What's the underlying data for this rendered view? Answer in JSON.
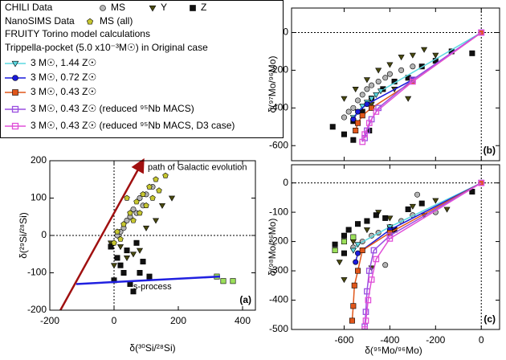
{
  "legend_headings": [
    "CHILI Data",
    "NanoSIMS Data",
    "FRUITY Torino model calculations",
    "Trippella-pocket (5.0 x10⁻³M☉) in Original case"
  ],
  "chart_data": [
    {
      "type": "scatter",
      "panel_label": "(a)",
      "xlabel": "δ(³⁰Si/²⁸Si)",
      "ylabel": "δ(²⁹Si/²⁸Si)",
      "xlim": [
        -200,
        440
      ],
      "ylim": [
        -200,
        200
      ],
      "xticks": [
        -200,
        0,
        200,
        400
      ],
      "yticks": [
        -200,
        -100,
        0,
        100,
        200
      ],
      "series": [
        {
          "name": "MS",
          "color": "#b4b4b4",
          "marker": "circle",
          "x": [
            20,
            40,
            60,
            80,
            100,
            30,
            50,
            70,
            120,
            10,
            90
          ],
          "values": [
            10,
            40,
            70,
            100,
            110,
            20,
            50,
            60,
            130,
            0,
            80
          ]
        },
        {
          "name": "Y",
          "color": "#4a4a10",
          "marker": "triangle-down",
          "x": [
            -10,
            20,
            60,
            100,
            150,
            180,
            40,
            80,
            130,
            0
          ],
          "values": [
            -20,
            -30,
            -50,
            20,
            80,
            100,
            -60,
            -40,
            40,
            -80
          ]
        },
        {
          "name": "Z",
          "color": "#111111",
          "marker": "square",
          "x": [
            -10,
            10,
            30,
            50,
            60,
            80,
            20,
            0,
            90,
            40,
            110,
            70
          ],
          "values": [
            -30,
            -60,
            -100,
            -130,
            -150,
            -100,
            -80,
            -120,
            -70,
            -40,
            -110,
            -20
          ]
        },
        {
          "name": "MS (all)",
          "color": "#c6c630",
          "marker": "pentagon",
          "x": [
            160,
            130,
            110,
            90,
            70,
            50,
            30,
            10,
            20,
            100,
            140,
            60,
            80,
            0,
            40,
            120
          ],
          "values": [
            160,
            150,
            130,
            110,
            90,
            60,
            30,
            10,
            -10,
            80,
            120,
            40,
            60,
            -20,
            100,
            100
          ]
        },
        {
          "color": "#9be05a",
          "marker": "square",
          "x": [
            320,
            340,
            370
          ],
          "values": [
            -110,
            -122,
            -122
          ]
        }
      ],
      "lines": [
        {
          "color": "#a01010",
          "arrow": true,
          "x": [
            -167,
            90
          ],
          "values": [
            -200,
            200
          ]
        },
        {
          "color": "#2020e0",
          "x": [
            -118,
            330
          ],
          "values": [
            -130,
            -110
          ]
        }
      ],
      "annotations": [
        {
          "text": "path of Galactic evolution",
          "x": 105,
          "y": 182
        },
        {
          "text": "s-process",
          "x": 60,
          "y": -138
        }
      ]
    },
    {
      "type": "scatter",
      "panel_label": "(b)",
      "ylabel": "δ(⁹⁷Mo/⁹⁶Mo)",
      "xlim": [
        -830,
        80
      ],
      "ylim": [
        -680,
        130
      ],
      "xticks": [
        -600,
        -400,
        -200,
        0
      ],
      "yticks": [
        -600,
        -400,
        -200,
        0
      ],
      "series": [
        {
          "color": "#b4b4b4",
          "marker": "circle",
          "x": [
            -560,
            -540,
            -520,
            -500,
            -480,
            -450,
            -420,
            -400,
            -350,
            -300,
            -600,
            -580
          ],
          "values": [
            -400,
            -360,
            -330,
            -300,
            -280,
            -260,
            -240,
            -220,
            -200,
            -180,
            -450,
            -420
          ]
        },
        {
          "color": "#4a4a10",
          "marker": "triangle-down",
          "x": [
            -500,
            -450,
            -400,
            -350,
            -300,
            -250,
            -200,
            -550,
            -600,
            -480,
            -380,
            -320
          ],
          "values": [
            -250,
            -200,
            -170,
            -130,
            -120,
            -90,
            -120,
            -300,
            -350,
            -380,
            -300,
            -350
          ]
        },
        {
          "color": "#111111",
          "marker": "square",
          "x": [
            -650,
            -600,
            -560,
            -520,
            -480,
            -430,
            -380,
            -320,
            -260,
            -200,
            -130,
            -40,
            -560,
            -490
          ],
          "values": [
            -500,
            -540,
            -470,
            -420,
            -350,
            -300,
            -260,
            -240,
            -180,
            -150,
            -100,
            -110,
            -570,
            -520
          ]
        },
        {
          "name": "3 M☉, 1.44 Z☉",
          "color": "#5bd8e0",
          "marker": "triangle-down",
          "line": true,
          "x": [
            0,
            -440,
            -460,
            -480,
            -500,
            -520,
            -540,
            -560
          ],
          "values": [
            0,
            -310,
            -330,
            -350,
            -370,
            -390,
            -420,
            -450
          ]
        },
        {
          "name": "3 M☉, 0.72 Z☉",
          "color": "#1a1adb",
          "marker": "circle",
          "line": true,
          "x": [
            0,
            -300,
            -500,
            -540,
            -560
          ],
          "values": [
            0,
            -250,
            -380,
            -420,
            -460
          ]
        },
        {
          "name": "3 M☉, 0.43 Z☉",
          "color": "#e0561a",
          "marker": "square",
          "line": true,
          "x": [
            0,
            -300,
            -480,
            -520,
            -540,
            -550
          ],
          "values": [
            0,
            -260,
            -400,
            -440,
            -480,
            -520
          ]
        },
        {
          "name": "3 M☉, 0.43 Z☉ (reduced ⁹⁵Nb MACS)",
          "color": "#9a4fe0",
          "marker": "square-open",
          "line": true,
          "x": [
            0,
            -300,
            -450,
            -480,
            -500,
            -510
          ],
          "values": [
            0,
            -250,
            -400,
            -460,
            -520,
            -560
          ]
        },
        {
          "name": "3 M☉, 0.43 Z☉ (reduced ⁹⁵Nb MACS, D3 case)",
          "color": "#e050d8",
          "marker": "square-open",
          "line": true,
          "x": [
            0,
            -300,
            -460,
            -490,
            -510,
            -520
          ],
          "values": [
            0,
            -260,
            -420,
            -480,
            -540,
            -580
          ]
        }
      ]
    },
    {
      "type": "scatter",
      "panel_label": "(c)",
      "xlabel": "δ(⁹⁵Mo/⁹⁶Mo)",
      "ylabel": "δ(⁹⁸Mo/⁹⁶Mo)",
      "xlim": [
        -830,
        80
      ],
      "ylim": [
        -500,
        62
      ],
      "xticks": [
        -600,
        -400,
        -200,
        0
      ],
      "yticks": [
        -500,
        -400,
        -300,
        -200,
        -100,
        0
      ],
      "series": [
        {
          "color": "#b4b4b4",
          "marker": "circle",
          "x": [
            -560,
            -520,
            -480,
            -450,
            -400,
            -350,
            -300,
            -280,
            -420,
            -600,
            -200
          ],
          "values": [
            -220,
            -200,
            -180,
            -170,
            -150,
            -130,
            -110,
            -40,
            -280,
            -180,
            -100
          ]
        },
        {
          "color": "#4a4a10",
          "marker": "triangle-down",
          "x": [
            -620,
            -560,
            -500,
            -450,
            -400,
            -300,
            -250,
            -200,
            -150,
            -600,
            -480
          ],
          "values": [
            -270,
            -200,
            -160,
            -100,
            -120,
            -80,
            -110,
            -60,
            -90,
            -330,
            -290
          ]
        },
        {
          "color": "#111111",
          "marker": "square",
          "x": [
            -640,
            -600,
            -580,
            -540,
            -500,
            -460,
            -420,
            -380,
            -320,
            -260,
            -40,
            -600
          ],
          "values": [
            -210,
            -180,
            -160,
            -140,
            -130,
            -110,
            -120,
            -160,
            -90,
            -70,
            -30,
            -240
          ]
        },
        {
          "color": "#9be05a",
          "marker": "square",
          "x": [
            -640,
            -600,
            -560
          ],
          "values": [
            -230,
            -200,
            -185
          ]
        },
        {
          "color": "#5bd8e0",
          "marker": "triangle-down",
          "line": true,
          "x": [
            0,
            -400,
            -540,
            -560
          ],
          "values": [
            0,
            -150,
            -210,
            -230
          ]
        },
        {
          "color": "#1a1adb",
          "marker": "circle",
          "line": true,
          "x": [
            0,
            -400,
            -540,
            -550
          ],
          "values": [
            0,
            -160,
            -240,
            -270
          ]
        },
        {
          "color": "#e0561a",
          "marker": "square",
          "line": true,
          "x": [
            0,
            -400,
            -520,
            -540,
            -555,
            -560,
            -565
          ],
          "values": [
            0,
            -170,
            -230,
            -300,
            -350,
            -420,
            -470
          ]
        },
        {
          "color": "#9a4fe0",
          "marker": "square-open",
          "line": true,
          "x": [
            0,
            -400,
            -470,
            -490,
            -500,
            -505,
            -510
          ],
          "values": [
            0,
            -180,
            -230,
            -300,
            -370,
            -440,
            -490
          ]
        },
        {
          "color": "#e050d8",
          "marker": "square-open",
          "line": true,
          "x": [
            0,
            -400,
            -460,
            -480,
            -495,
            -505,
            -510
          ],
          "values": [
            0,
            -190,
            -260,
            -330,
            -400,
            -470,
            -500
          ]
        }
      ]
    }
  ]
}
